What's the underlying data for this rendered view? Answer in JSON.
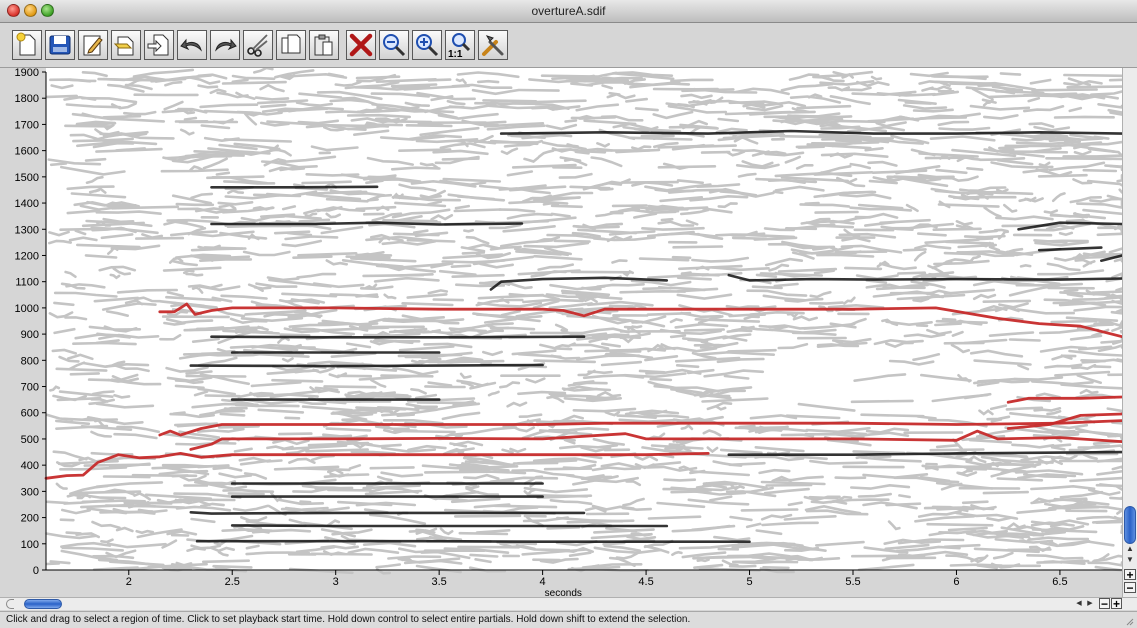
{
  "window": {
    "title": "overtureA.sdif"
  },
  "toolbar": {
    "buttons": [
      {
        "name": "new-icon"
      },
      {
        "name": "save-icon"
      },
      {
        "name": "edit-icon"
      },
      {
        "name": "open-icon"
      },
      {
        "name": "import-icon"
      },
      {
        "name": "undo-icon"
      },
      {
        "name": "redo-icon"
      },
      {
        "name": "cut-icon"
      },
      {
        "name": "copy-icon"
      },
      {
        "name": "paste-icon"
      },
      {
        "name": "delete-icon"
      },
      {
        "name": "zoom-out-icon"
      },
      {
        "name": "zoom-in-icon"
      },
      {
        "name": "zoom-1to1-icon",
        "label": "1:1"
      },
      {
        "name": "tools-icon"
      }
    ]
  },
  "chart_data": {
    "type": "line",
    "xlabel": "seconds",
    "xlim": [
      1.6,
      6.8
    ],
    "ylim": [
      0,
      1900
    ],
    "x_ticks": [
      "2",
      "2.5",
      "3",
      "3.5",
      "4",
      "4.5",
      "5",
      "5.5",
      "6",
      "6.5"
    ],
    "y_ticks": [
      "0",
      "100",
      "200",
      "300",
      "400",
      "500",
      "600",
      "700",
      "800",
      "900",
      "1000",
      "1100",
      "1200",
      "1300",
      "1400",
      "1500",
      "1600",
      "1700",
      "1800",
      "1900"
    ],
    "colors": {
      "background": "#ffffff",
      "partial": "#c4c4c4",
      "strong_partial": "#111111",
      "selected_partial": "#c62a2a"
    },
    "series": [
      {
        "group": "selected",
        "points": [
          [
            1.6,
            350
          ],
          [
            1.7,
            360
          ],
          [
            1.78,
            362
          ],
          [
            1.85,
            410
          ],
          [
            1.95,
            440
          ],
          [
            2.05,
            428
          ],
          [
            2.15,
            432
          ],
          [
            2.25,
            445
          ],
          [
            2.35,
            430
          ],
          [
            2.5,
            440
          ],
          [
            3.0,
            440
          ],
          [
            3.5,
            440
          ],
          [
            4.0,
            440
          ],
          [
            4.5,
            440
          ],
          [
            4.8,
            445
          ]
        ]
      },
      {
        "group": "selected",
        "points": [
          [
            2.15,
            515
          ],
          [
            2.2,
            530
          ],
          [
            2.25,
            515
          ],
          [
            2.35,
            540
          ],
          [
            2.45,
            555
          ],
          [
            3.0,
            555
          ],
          [
            3.5,
            555
          ],
          [
            4.0,
            555
          ],
          [
            4.3,
            560
          ],
          [
            4.6,
            560
          ],
          [
            5.0,
            560
          ],
          [
            5.5,
            560
          ],
          [
            6.0,
            555
          ],
          [
            6.5,
            560
          ],
          [
            6.8,
            570
          ]
        ]
      },
      {
        "group": "selected",
        "points": [
          [
            2.3,
            460
          ],
          [
            2.4,
            480
          ],
          [
            2.45,
            500
          ],
          [
            3.0,
            500
          ],
          [
            3.5,
            502
          ],
          [
            4.0,
            500
          ],
          [
            4.4,
            520
          ],
          [
            4.5,
            500
          ],
          [
            5.0,
            500
          ],
          [
            5.5,
            500
          ],
          [
            6.0,
            495
          ],
          [
            6.1,
            530
          ],
          [
            6.2,
            500
          ],
          [
            6.5,
            505
          ],
          [
            6.8,
            490
          ]
        ]
      },
      {
        "group": "selected",
        "points": [
          [
            2.15,
            985
          ],
          [
            2.22,
            985
          ],
          [
            2.28,
            1015
          ],
          [
            2.32,
            975
          ],
          [
            2.4,
            990
          ],
          [
            2.5,
            1000
          ],
          [
            3.0,
            1000
          ],
          [
            3.5,
            995
          ],
          [
            4.0,
            995
          ],
          [
            4.1,
            990
          ],
          [
            4.2,
            970
          ],
          [
            4.3,
            995
          ],
          [
            5.0,
            995
          ],
          [
            5.5,
            995
          ],
          [
            5.9,
            1000
          ],
          [
            6.2,
            960
          ],
          [
            6.4,
            940
          ],
          [
            6.6,
            930
          ],
          [
            6.8,
            890
          ]
        ]
      },
      {
        "group": "selected",
        "points": [
          [
            6.25,
            640
          ],
          [
            6.35,
            655
          ],
          [
            6.6,
            655
          ],
          [
            6.8,
            660
          ]
        ]
      },
      {
        "group": "selected",
        "points": [
          [
            6.25,
            540
          ],
          [
            6.45,
            555
          ],
          [
            6.6,
            590
          ],
          [
            6.8,
            595
          ]
        ]
      },
      {
        "group": "strong",
        "points": [
          [
            2.33,
            110
          ],
          [
            3.0,
            110
          ],
          [
            3.5,
            110
          ],
          [
            4.0,
            108
          ],
          [
            4.5,
            108
          ],
          [
            5.0,
            108
          ]
        ]
      },
      {
        "group": "strong",
        "points": [
          [
            2.3,
            220
          ],
          [
            2.4,
            215
          ],
          [
            3.0,
            218
          ],
          [
            3.5,
            218
          ],
          [
            4.2,
            218
          ]
        ]
      },
      {
        "group": "strong",
        "points": [
          [
            2.5,
            170
          ],
          [
            3.0,
            168
          ],
          [
            3.5,
            168
          ],
          [
            4.0,
            168
          ],
          [
            4.6,
            168
          ]
        ]
      },
      {
        "group": "strong",
        "points": [
          [
            2.5,
            280
          ],
          [
            3.0,
            280
          ],
          [
            3.5,
            280
          ],
          [
            4.0,
            280
          ]
        ]
      },
      {
        "group": "strong",
        "points": [
          [
            2.5,
            330
          ],
          [
            3.0,
            330
          ],
          [
            3.5,
            330
          ],
          [
            4.0,
            330
          ]
        ]
      },
      {
        "group": "strong",
        "points": [
          [
            4.9,
            440
          ],
          [
            5.5,
            440
          ],
          [
            6.0,
            445
          ],
          [
            6.8,
            450
          ]
        ]
      },
      {
        "group": "strong",
        "points": [
          [
            2.3,
            780
          ],
          [
            3.0,
            778
          ],
          [
            3.5,
            780
          ],
          [
            4.0,
            782
          ]
        ]
      },
      {
        "group": "strong",
        "points": [
          [
            2.4,
            890
          ],
          [
            3.0,
            888
          ],
          [
            3.5,
            888
          ],
          [
            4.2,
            890
          ]
        ]
      },
      {
        "group": "strong",
        "points": [
          [
            2.5,
            830
          ],
          [
            3.0,
            830
          ],
          [
            3.5,
            830
          ]
        ]
      },
      {
        "group": "strong",
        "points": [
          [
            3.75,
            1070
          ],
          [
            3.8,
            1100
          ],
          [
            4.0,
            1110
          ],
          [
            4.3,
            1115
          ],
          [
            4.6,
            1105
          ]
        ]
      },
      {
        "group": "strong",
        "points": [
          [
            4.9,
            1125
          ],
          [
            5.0,
            1105
          ],
          [
            5.3,
            1110
          ],
          [
            5.6,
            1108
          ],
          [
            6.0,
            1110
          ],
          [
            6.5,
            1108
          ],
          [
            6.8,
            1112
          ]
        ]
      },
      {
        "group": "strong",
        "points": [
          [
            2.4,
            1320
          ],
          [
            2.9,
            1320
          ],
          [
            3.2,
            1325
          ],
          [
            3.5,
            1318
          ],
          [
            3.9,
            1322
          ]
        ]
      },
      {
        "group": "strong",
        "points": [
          [
            6.3,
            1300
          ],
          [
            6.5,
            1325
          ],
          [
            6.8,
            1320
          ]
        ]
      },
      {
        "group": "strong",
        "points": [
          [
            3.8,
            1665
          ],
          [
            4.3,
            1670
          ],
          [
            4.8,
            1665
          ],
          [
            5.2,
            1675
          ],
          [
            5.6,
            1665
          ],
          [
            6.0,
            1665
          ],
          [
            6.4,
            1670
          ],
          [
            6.8,
            1665
          ]
        ]
      },
      {
        "group": "strong",
        "points": [
          [
            2.4,
            1460
          ],
          [
            2.8,
            1460
          ],
          [
            3.2,
            1462
          ]
        ]
      },
      {
        "group": "strong",
        "points": [
          [
            2.5,
            650
          ],
          [
            3.0,
            650
          ],
          [
            3.5,
            650
          ]
        ]
      },
      {
        "group": "strong",
        "points": [
          [
            6.7,
            1180
          ],
          [
            6.8,
            1200
          ]
        ]
      },
      {
        "group": "strong",
        "points": [
          [
            6.4,
            1220
          ],
          [
            6.7,
            1230
          ]
        ]
      }
    ]
  },
  "vscroll": {
    "up_arrow": "▲",
    "down_arrow": "▼",
    "zoom_in": "+",
    "zoom_out": "−"
  },
  "hscroll": {
    "left_arrow": "◀",
    "right_arrow": "▶",
    "zoom_out": "−",
    "zoom_in": "+"
  },
  "status": {
    "text": "Click and drag to select a region of time. Click to set playback start time. Hold down control to select entire partials. Hold down shift to extend the selection."
  }
}
